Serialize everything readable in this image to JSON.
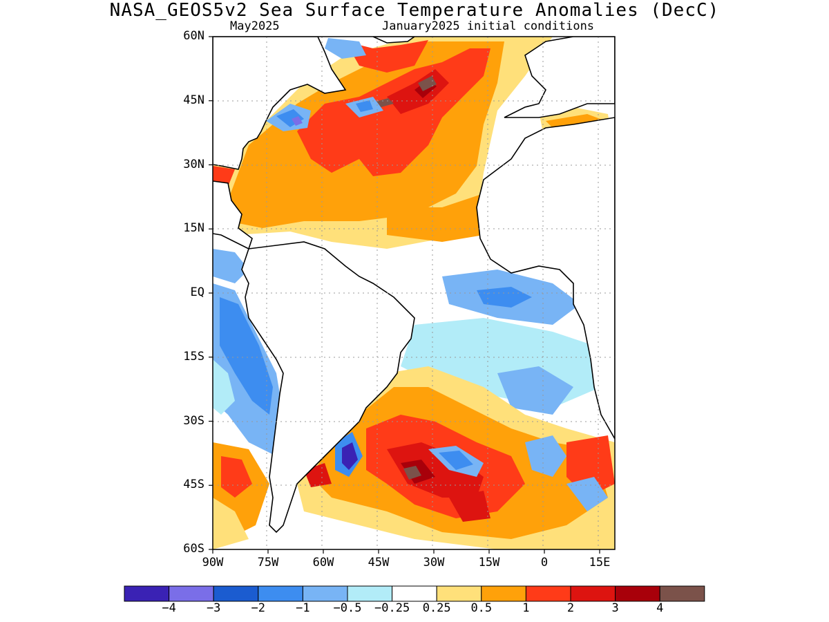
{
  "title": "NASA_GEOS5v2 Sea Surface Temperature Anomalies (DecC)",
  "subtitle_left": "May2025",
  "subtitle_right": "January2025 initial conditions",
  "lat_labels": [
    "60N",
    "45N",
    "30N",
    "15N",
    "EQ",
    "15S",
    "30S",
    "45S",
    "60S"
  ],
  "lon_labels": [
    "90W",
    "75W",
    "60W",
    "45W",
    "30W",
    "15W",
    "0",
    "15E"
  ],
  "colorbar": {
    "colors": [
      "#3a22b4",
      "#7a6ee8",
      "#1b5cd0",
      "#3d8df0",
      "#78b4f5",
      "#b2ecf8",
      "#ffffff",
      "#ffe07a",
      "#ffa10a",
      "#ff3b18",
      "#dd1410",
      "#a8000a",
      "#7b524a"
    ],
    "labels": [
      "−4",
      "−3",
      "−2",
      "−1",
      "−0.5",
      "−0.25",
      "0.25",
      "0.5",
      "1",
      "2",
      "3",
      "4"
    ]
  },
  "land_color": "#ffffff",
  "coastline_color": "#000000",
  "grid_style": "dotted"
}
